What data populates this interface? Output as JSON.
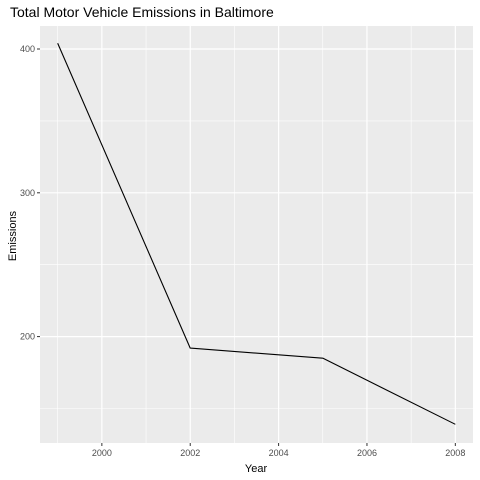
{
  "chart_data": {
    "type": "line",
    "title": "Total Motor Vehicle Emissions in Baltimore",
    "xlabel": "Year",
    "ylabel": "Emissions",
    "x": [
      1999,
      2002,
      2005,
      2008
    ],
    "series": [
      {
        "values": [
          404,
          192,
          185,
          139
        ]
      }
    ],
    "xlim": [
      1998.6,
      2008.4
    ],
    "ylim": [
      126,
      416
    ],
    "x_ticks": [
      2000,
      2002,
      2004,
      2006,
      2008
    ],
    "x_minor_ticks": [
      1999,
      2001,
      2003,
      2005,
      2007
    ],
    "y_ticks": [
      200,
      300,
      400
    ],
    "y_minor_ticks": [
      150,
      250,
      350
    ],
    "grid": true,
    "panel_color": "#ebebeb",
    "grid_color": "#ffffff",
    "line_color": "#000000"
  }
}
